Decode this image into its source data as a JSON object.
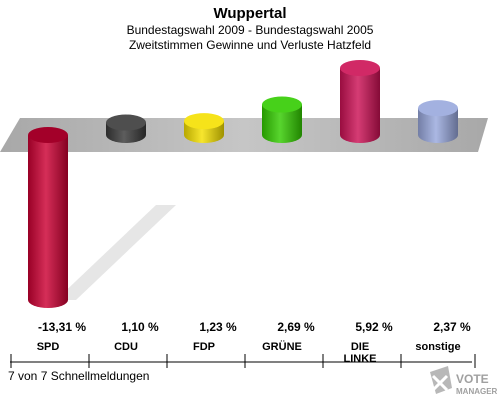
{
  "header": {
    "title": "Wuppertal",
    "subtitle1": "Bundestagswahl 2009 - Bundestagswahl 2005",
    "subtitle2": "Zweitstimmen Gewinne und Verluste Hatzfeld"
  },
  "footer": {
    "status": "7 von 7 Schnellmeldungen",
    "logo_line1": "VOTE",
    "logo_line2": "MANAGER"
  },
  "chart_data": {
    "type": "bar",
    "title": "Bundestagswahl 2009 - Bundestagswahl 2005",
    "categories": [
      "SPD",
      "CDU",
      "FDP",
      "GRÜNE",
      "DIE LINKE",
      "sonstige"
    ],
    "category_lines": [
      [
        "SPD"
      ],
      [
        "CDU"
      ],
      [
        "FDP"
      ],
      [
        "GRÜNE"
      ],
      [
        "DIE",
        "LINKE"
      ],
      [
        "sonstige"
      ]
    ],
    "values": [
      -13.31,
      1.1,
      1.23,
      2.69,
      5.92,
      2.37
    ],
    "value_labels": [
      "-13,31 %",
      "1,10 %",
      "1,23 %",
      "2,69 %",
      "5,92 %",
      "2,37 %"
    ],
    "colors": [
      "#cc0033",
      "#3a3a3a",
      "#f5e000",
      "#33cc00",
      "#cc1155",
      "#99a8dd"
    ],
    "ylim": [
      -13.31,
      5.92
    ],
    "legend": "none",
    "grid": false
  }
}
